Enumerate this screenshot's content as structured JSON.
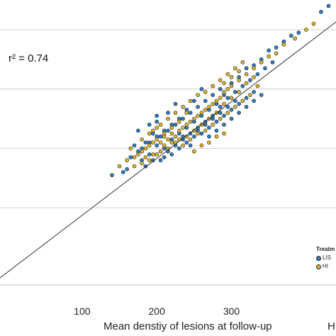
{
  "chart_data": {
    "type": "scatter",
    "xlabel": "Mean denstiy of lesions at follow-up",
    "ylabel": "",
    "xlim": [
      -10,
      440
    ],
    "ylim": [
      -20,
      460
    ],
    "xticks": [
      100,
      200,
      300
    ],
    "gridlines_y": [
      110,
      210,
      310,
      410
    ],
    "grid": "horizontal",
    "annotation": "r² = 0.74",
    "fit_line": {
      "x": [
        -10,
        440
      ],
      "y": [
        -8,
        423
      ]
    },
    "legend": {
      "title": "Treatm",
      "placement": "right",
      "entries": [
        {
          "label": "LIS",
          "color": "#2e7fc4"
        },
        {
          "label": "HI",
          "color": "#e0b72a"
        }
      ]
    },
    "edge_label": "H",
    "series": [
      {
        "name": "LIS",
        "color": "#2e7fc4",
        "points": [
          [
            140,
            165
          ],
          [
            155,
            170
          ],
          [
            175,
            205
          ],
          [
            180,
            190
          ],
          [
            185,
            220
          ],
          [
            190,
            200
          ],
          [
            195,
            235
          ],
          [
            200,
            215
          ],
          [
            205,
            230
          ],
          [
            210,
            210
          ],
          [
            215,
            240
          ],
          [
            220,
            225
          ],
          [
            225,
            250
          ],
          [
            230,
            235
          ],
          [
            235,
            260
          ],
          [
            240,
            245
          ],
          [
            245,
            270
          ],
          [
            250,
            255
          ],
          [
            255,
            280
          ],
          [
            260,
            265
          ],
          [
            265,
            290
          ],
          [
            270,
            275
          ],
          [
            275,
            300
          ],
          [
            280,
            285
          ],
          [
            285,
            310
          ],
          [
            290,
            300
          ],
          [
            300,
            320
          ],
          [
            305,
            305
          ],
          [
            310,
            330
          ],
          [
            320,
            345
          ],
          [
            330,
            350
          ],
          [
            340,
            360
          ],
          [
            350,
            375
          ],
          [
            360,
            380
          ],
          [
            370,
            390
          ],
          [
            380,
            400
          ],
          [
            390,
            405
          ],
          [
            420,
            440
          ],
          [
            430,
            450
          ],
          [
            175,
            240
          ],
          [
            190,
            250
          ],
          [
            200,
            255
          ],
          [
            215,
            270
          ],
          [
            225,
            285
          ],
          [
            235,
            230
          ],
          [
            245,
            215
          ],
          [
            255,
            240
          ],
          [
            265,
            250
          ],
          [
            275,
            260
          ],
          [
            285,
            270
          ],
          [
            295,
            280
          ],
          [
            305,
            290
          ],
          [
            185,
            180
          ],
          [
            195,
            190
          ],
          [
            210,
            195
          ],
          [
            220,
            200
          ],
          [
            230,
            210
          ],
          [
            240,
            220
          ],
          [
            250,
            230
          ],
          [
            260,
            235
          ],
          [
            270,
            245
          ],
          [
            280,
            255
          ],
          [
            290,
            265
          ],
          [
            300,
            275
          ],
          [
            310,
            285
          ],
          [
            320,
            295
          ],
          [
            330,
            305
          ],
          [
            165,
            195
          ],
          [
            170,
            215
          ],
          [
            200,
            265
          ],
          [
            205,
            190
          ],
          [
            215,
            205
          ],
          [
            225,
            215
          ],
          [
            235,
            225
          ],
          [
            245,
            235
          ],
          [
            255,
            245
          ],
          [
            265,
            255
          ],
          [
            275,
            265
          ],
          [
            285,
            280
          ],
          [
            295,
            295
          ],
          [
            315,
            315
          ],
          [
            325,
            325
          ],
          [
            335,
            335
          ],
          [
            345,
            345
          ],
          [
            355,
            355
          ],
          [
            260,
            310
          ],
          [
            250,
            290
          ],
          [
            240,
            275
          ],
          [
            230,
            260
          ],
          [
            220,
            250
          ],
          [
            210,
            240
          ],
          [
            200,
            230
          ],
          [
            190,
            220
          ],
          [
            180,
            210
          ],
          [
            160,
            175
          ],
          [
            270,
            230
          ],
          [
            280,
            240
          ],
          [
            290,
            250
          ],
          [
            300,
            260
          ],
          [
            310,
            270
          ],
          [
            320,
            280
          ],
          [
            330,
            290
          ],
          [
            340,
            300
          ]
        ]
      },
      {
        "name": "HI",
        "color": "#e0b72a",
        "points": [
          [
            150,
            180
          ],
          [
            160,
            190
          ],
          [
            170,
            195
          ],
          [
            175,
            200
          ],
          [
            180,
            205
          ],
          [
            185,
            210
          ],
          [
            190,
            215
          ],
          [
            195,
            220
          ],
          [
            200,
            225
          ],
          [
            205,
            220
          ],
          [
            210,
            230
          ],
          [
            215,
            225
          ],
          [
            220,
            235
          ],
          [
            225,
            230
          ],
          [
            230,
            240
          ],
          [
            235,
            245
          ],
          [
            240,
            250
          ],
          [
            245,
            255
          ],
          [
            250,
            260
          ],
          [
            255,
            265
          ],
          [
            260,
            270
          ],
          [
            265,
            275
          ],
          [
            270,
            280
          ],
          [
            275,
            285
          ],
          [
            280,
            290
          ],
          [
            285,
            295
          ],
          [
            290,
            305
          ],
          [
            295,
            310
          ],
          [
            300,
            315
          ],
          [
            310,
            325
          ],
          [
            320,
            335
          ],
          [
            330,
            345
          ],
          [
            340,
            355
          ],
          [
            350,
            365
          ],
          [
            360,
            370
          ],
          [
            370,
            385
          ],
          [
            385,
            395
          ],
          [
            400,
            410
          ],
          [
            410,
            420
          ],
          [
            165,
            210
          ],
          [
            180,
            225
          ],
          [
            195,
            240
          ],
          [
            205,
            250
          ],
          [
            215,
            260
          ],
          [
            225,
            270
          ],
          [
            235,
            280
          ],
          [
            245,
            290
          ],
          [
            255,
            300
          ],
          [
            265,
            305
          ],
          [
            275,
            315
          ],
          [
            285,
            325
          ],
          [
            295,
            335
          ],
          [
            305,
            345
          ],
          [
            315,
            355
          ],
          [
            185,
            195
          ],
          [
            195,
            200
          ],
          [
            205,
            205
          ],
          [
            215,
            210
          ],
          [
            225,
            220
          ],
          [
            235,
            215
          ],
          [
            245,
            225
          ],
          [
            255,
            235
          ],
          [
            265,
            240
          ],
          [
            275,
            250
          ],
          [
            285,
            260
          ],
          [
            295,
            270
          ],
          [
            305,
            280
          ],
          [
            315,
            290
          ],
          [
            325,
            300
          ],
          [
            335,
            315
          ],
          [
            170,
            180
          ],
          [
            180,
            185
          ],
          [
            190,
            190
          ],
          [
            200,
            200
          ],
          [
            210,
            215
          ],
          [
            220,
            220
          ],
          [
            230,
            225
          ],
          [
            240,
            230
          ],
          [
            250,
            240
          ],
          [
            260,
            250
          ],
          [
            270,
            260
          ],
          [
            280,
            270
          ],
          [
            290,
            285
          ],
          [
            300,
            295
          ],
          [
            310,
            305
          ],
          [
            320,
            320
          ],
          [
            330,
            330
          ],
          [
            250,
            205
          ],
          [
            260,
            215
          ],
          [
            270,
            220
          ],
          [
            280,
            230
          ],
          [
            290,
            235
          ],
          [
            240,
            270
          ],
          [
            230,
            255
          ],
          [
            220,
            245
          ],
          [
            210,
            235
          ],
          [
            200,
            245
          ],
          [
            190,
            235
          ],
          [
            290,
            320
          ],
          [
            300,
            330
          ],
          [
            310,
            340
          ]
        ]
      }
    ]
  }
}
